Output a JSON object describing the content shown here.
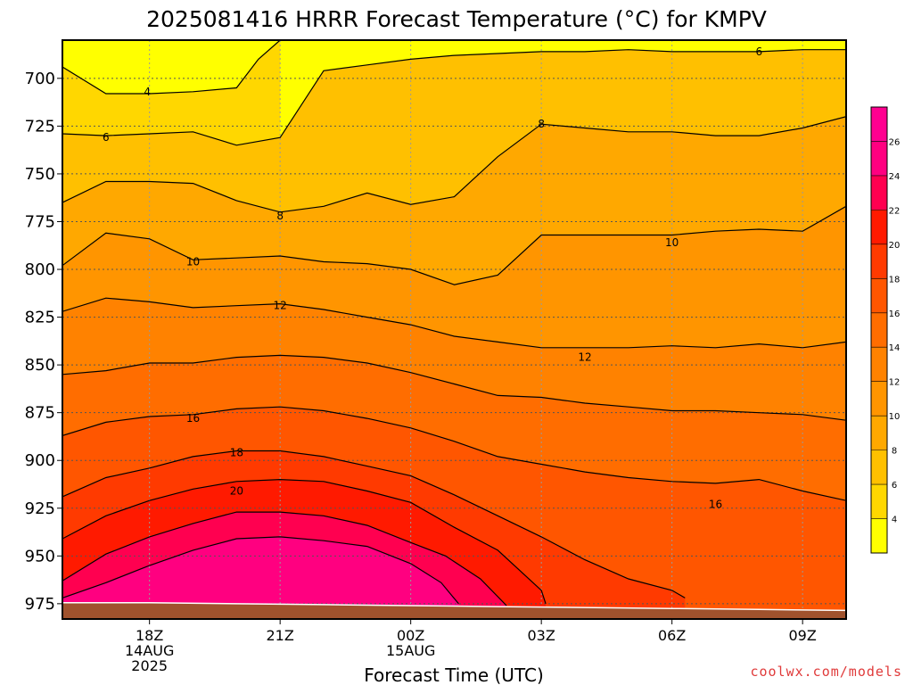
{
  "chart_data": {
    "type": "contour",
    "title": "2025081416 HRRR Forecast Temperature (°C) for KMPV",
    "xlabel": "Forecast Time (UTC)",
    "credit": "coolwx.com/models",
    "y_ticks": [
      "700",
      "725",
      "750",
      "775",
      "800",
      "825",
      "850",
      "875",
      "900",
      "925",
      "950",
      "975"
    ],
    "ylim": [
      680,
      983
    ],
    "x_ticks": [
      {
        "lines": [
          "18Z",
          "14AUG",
          "2025"
        ],
        "hour": 18
      },
      {
        "lines": [
          "21Z"
        ],
        "hour": 21
      },
      {
        "lines": [
          "00Z",
          "15AUG"
        ],
        "hour": 24
      },
      {
        "lines": [
          "03Z"
        ],
        "hour": 27
      },
      {
        "lines": [
          "06Z"
        ],
        "hour": 30
      },
      {
        "lines": [
          "09Z"
        ],
        "hour": 33
      }
    ],
    "xlim": [
      16,
      34
    ],
    "grid": true,
    "colorbar_ticks": [
      "4",
      "6",
      "8",
      "10",
      "12",
      "14",
      "16",
      "18",
      "20",
      "22",
      "24",
      "26"
    ],
    "colors": [
      "#ffff00",
      "#ffd700",
      "#ffc000",
      "#ffa800",
      "#ff9500",
      "#ff8200",
      "#ff6d00",
      "#ff5600",
      "#ff3a00",
      "#ff1a00",
      "#ff0050",
      "#ff0080",
      "#ff0090"
    ],
    "surface_color": "#a0522d",
    "contour_labels": [
      {
        "text": "4",
        "x": 17.95,
        "p": 707
      },
      {
        "text": "6",
        "x": 17.0,
        "p": 731
      },
      {
        "text": "6",
        "x": 32.0,
        "p": 686
      },
      {
        "text": "8",
        "x": 21.0,
        "p": 772
      },
      {
        "text": "8",
        "x": 27.0,
        "p": 724
      },
      {
        "text": "10",
        "x": 19.0,
        "p": 796
      },
      {
        "text": "10",
        "x": 30.0,
        "p": 786
      },
      {
        "text": "12",
        "x": 21.0,
        "p": 819
      },
      {
        "text": "12",
        "x": 28.0,
        "p": 846
      },
      {
        "text": "16",
        "x": 19.0,
        "p": 878
      },
      {
        "text": "16",
        "x": 31.0,
        "p": 923
      },
      {
        "text": "18",
        "x": 20.0,
        "p": 896
      },
      {
        "text": "20",
        "x": 20.0,
        "p": 916
      }
    ],
    "contours": [
      {
        "value": 4,
        "pts": [
          [
            16,
            694
          ],
          [
            17,
            708
          ],
          [
            18,
            708
          ],
          [
            19,
            707
          ],
          [
            20,
            705
          ],
          [
            20.5,
            690
          ],
          [
            21,
            680
          ]
        ]
      },
      {
        "value": 6,
        "pts": [
          [
            16,
            729
          ],
          [
            17,
            730
          ],
          [
            18,
            729
          ],
          [
            19,
            728
          ],
          [
            20,
            735
          ],
          [
            21,
            731
          ],
          [
            22,
            696
          ],
          [
            23,
            693
          ],
          [
            24,
            690
          ],
          [
            25,
            688
          ],
          [
            26,
            687
          ],
          [
            27,
            686
          ],
          [
            28,
            686
          ],
          [
            29,
            685
          ],
          [
            30,
            686
          ],
          [
            31,
            686
          ],
          [
            32,
            686
          ],
          [
            33,
            685
          ],
          [
            34,
            685
          ]
        ]
      },
      {
        "value": 8,
        "pts": [
          [
            16,
            765
          ],
          [
            17,
            754
          ],
          [
            18,
            754
          ],
          [
            19,
            755
          ],
          [
            20,
            764
          ],
          [
            21,
            770
          ],
          [
            22,
            767
          ],
          [
            23,
            760
          ],
          [
            24,
            766
          ],
          [
            25,
            762
          ],
          [
            26,
            741
          ],
          [
            27,
            724
          ],
          [
            28,
            726
          ],
          [
            29,
            728
          ],
          [
            30,
            728
          ],
          [
            31,
            730
          ],
          [
            32,
            730
          ],
          [
            33,
            726
          ],
          [
            34,
            720
          ]
        ]
      },
      {
        "value": 10,
        "pts": [
          [
            16,
            798
          ],
          [
            17,
            781
          ],
          [
            18,
            784
          ],
          [
            19,
            795
          ],
          [
            20,
            794
          ],
          [
            21,
            793
          ],
          [
            22,
            796
          ],
          [
            23,
            797
          ],
          [
            24,
            800
          ],
          [
            25,
            808
          ],
          [
            26,
            803
          ],
          [
            27,
            782
          ],
          [
            28,
            782
          ],
          [
            29,
            782
          ],
          [
            30,
            782
          ],
          [
            31,
            780
          ],
          [
            32,
            779
          ],
          [
            33,
            780
          ],
          [
            34,
            767
          ]
        ]
      },
      {
        "value": 12,
        "pts": [
          [
            16,
            822
          ],
          [
            17,
            815
          ],
          [
            18,
            817
          ],
          [
            19,
            820
          ],
          [
            20,
            819
          ],
          [
            21,
            818
          ],
          [
            22,
            821
          ],
          [
            23,
            825
          ],
          [
            24,
            829
          ],
          [
            25,
            835
          ],
          [
            26,
            838
          ],
          [
            27,
            841
          ],
          [
            28,
            841
          ],
          [
            29,
            841
          ],
          [
            30,
            840
          ],
          [
            31,
            841
          ],
          [
            32,
            839
          ],
          [
            33,
            841
          ],
          [
            34,
            838
          ]
        ]
      },
      {
        "value": 14,
        "pts": [
          [
            16,
            855
          ],
          [
            17,
            853
          ],
          [
            18,
            849
          ],
          [
            19,
            849
          ],
          [
            20,
            846
          ],
          [
            21,
            845
          ],
          [
            22,
            846
          ],
          [
            23,
            849
          ],
          [
            24,
            854
          ],
          [
            25,
            860
          ],
          [
            26,
            866
          ],
          [
            27,
            867
          ],
          [
            28,
            870
          ],
          [
            29,
            872
          ],
          [
            30,
            874
          ],
          [
            31,
            874
          ],
          [
            32,
            875
          ],
          [
            33,
            876
          ],
          [
            34,
            879
          ]
        ]
      },
      {
        "value": 16,
        "pts": [
          [
            16,
            887
          ],
          [
            17,
            880
          ],
          [
            18,
            877
          ],
          [
            19,
            876
          ],
          [
            20,
            873
          ],
          [
            21,
            872
          ],
          [
            22,
            874
          ],
          [
            23,
            878
          ],
          [
            24,
            883
          ],
          [
            25,
            890
          ],
          [
            26,
            898
          ],
          [
            27,
            902
          ],
          [
            28,
            906
          ],
          [
            29,
            909
          ],
          [
            30,
            911
          ],
          [
            31,
            912
          ],
          [
            32,
            910
          ],
          [
            33,
            916
          ],
          [
            34,
            921
          ]
        ]
      },
      {
        "value": 18,
        "pts": [
          [
            16,
            919
          ],
          [
            17,
            909
          ],
          [
            18,
            904
          ],
          [
            19,
            898
          ],
          [
            20,
            895
          ],
          [
            21,
            895
          ],
          [
            22,
            898
          ],
          [
            23,
            903
          ],
          [
            24,
            908
          ],
          [
            25,
            918
          ],
          [
            26,
            929
          ],
          [
            27,
            940
          ],
          [
            28,
            952
          ],
          [
            29,
            962
          ],
          [
            30,
            968
          ],
          [
            30.3,
            972
          ]
        ]
      },
      {
        "value": 20,
        "pts": [
          [
            16,
            941
          ],
          [
            17,
            929
          ],
          [
            18,
            921
          ],
          [
            19,
            915
          ],
          [
            20,
            911
          ],
          [
            21,
            910
          ],
          [
            22,
            911
          ],
          [
            23,
            916
          ],
          [
            24,
            922
          ],
          [
            25,
            935
          ],
          [
            26,
            947
          ],
          [
            27,
            968
          ],
          [
            27.1,
            975
          ]
        ]
      },
      {
        "value": 22,
        "pts": [
          [
            16,
            963
          ],
          [
            17,
            949
          ],
          [
            18,
            940
          ],
          [
            19,
            933
          ],
          [
            20,
            927
          ],
          [
            21,
            927
          ],
          [
            22,
            929
          ],
          [
            23,
            934
          ],
          [
            24,
            943
          ],
          [
            24.8,
            950
          ],
          [
            25.6,
            962
          ],
          [
            26.2,
            976
          ]
        ]
      },
      {
        "value": 24,
        "pts": [
          [
            16,
            972
          ],
          [
            17,
            964
          ],
          [
            18,
            955
          ],
          [
            19,
            947
          ],
          [
            20,
            941
          ],
          [
            21,
            940
          ],
          [
            22,
            942
          ],
          [
            23,
            945
          ],
          [
            24,
            954
          ],
          [
            24.7,
            964
          ],
          [
            25.1,
            975
          ]
        ]
      }
    ],
    "surface_pts": [
      [
        16,
        974.5
      ],
      [
        18,
        974.5
      ],
      [
        20,
        975
      ],
      [
        22,
        975.5
      ],
      [
        24,
        976
      ],
      [
        26,
        976.5
      ],
      [
        28,
        977
      ],
      [
        30,
        977.5
      ],
      [
        32,
        978
      ],
      [
        34,
        978.5
      ]
    ]
  }
}
